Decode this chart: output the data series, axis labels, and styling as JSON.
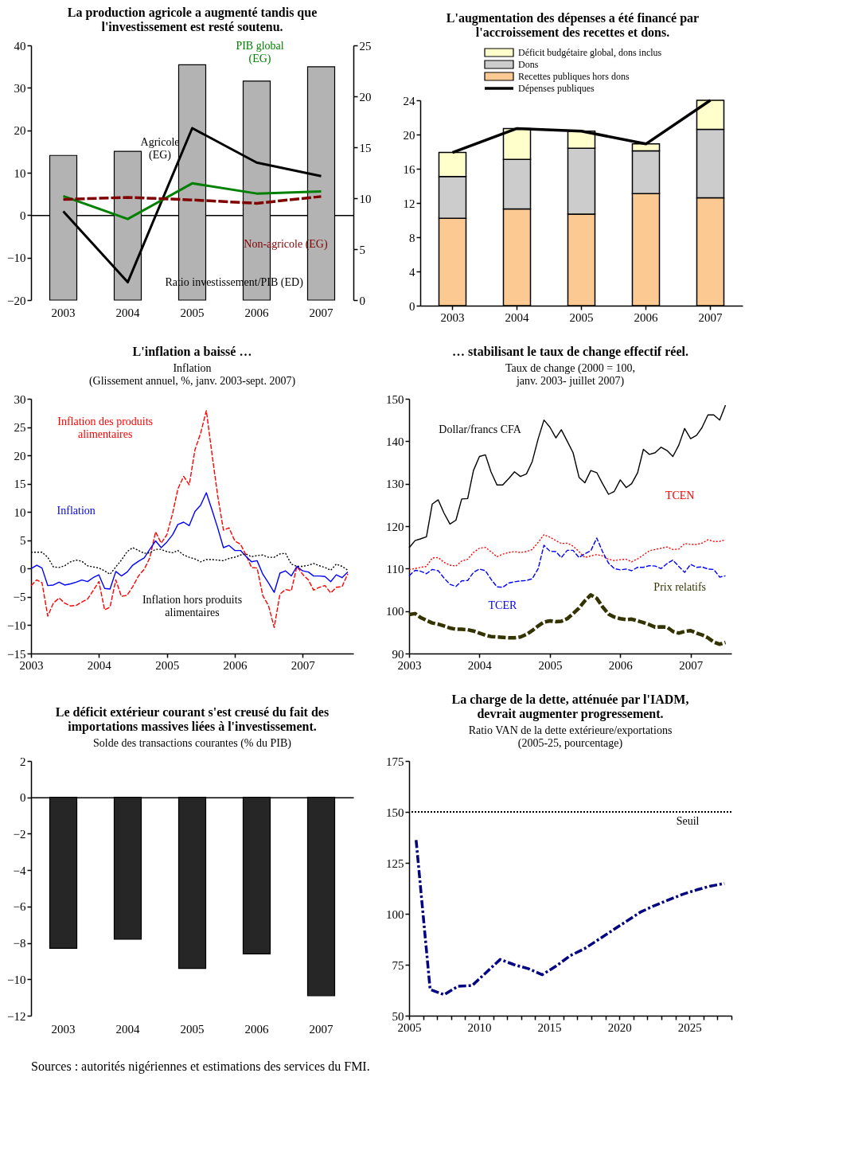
{
  "chart_data": [
    {
      "type": "bar",
      "title": "La production agricole a augmenté tandis que\nl'investissement est resté soutenu.",
      "categories": [
        "2003",
        "2004",
        "2005",
        "2006",
        "2007"
      ],
      "series": [
        {
          "name": "Ratio investissement/PIB (ED)",
          "type": "bar",
          "axis": "y2",
          "color": "#b3b3b3",
          "values": [
            14.2,
            14.6,
            23.1,
            21.5,
            22.9
          ]
        },
        {
          "name": "Agricole\n(EG)",
          "type": "line",
          "color": "#000000",
          "values": [
            0.9,
            -15.8,
            20.5,
            12.4,
            9.2
          ]
        },
        {
          "name": "PIB global\n(EG)",
          "type": "line",
          "color": "#008000",
          "values": [
            4.5,
            -0.9,
            7.5,
            5.1,
            5.6
          ]
        },
        {
          "name": "Non-agricole (EG)",
          "type": "line",
          "color": "#800000",
          "line_style": "dashed",
          "values": [
            3.7,
            4.2,
            3.6,
            2.8,
            4.4
          ]
        }
      ],
      "ylim": [
        -20,
        40
      ],
      "yticks": [
        -20,
        -10,
        0,
        10,
        20,
        30,
        40
      ],
      "y2lim": [
        0,
        25
      ],
      "y2ticks": [
        0,
        5,
        10,
        15,
        20,
        25
      ],
      "legend": false
    },
    {
      "type": "bar",
      "title": "L'augmentation des dépenses a été financé par\nl'accroissement des recettes et dons.",
      "categories": [
        "2003",
        "2004",
        "2005",
        "2006",
        "2007"
      ],
      "stacked": true,
      "series": [
        {
          "name": "Recettes publiques hors dons",
          "color": "#fcc993",
          "values": [
            10.2,
            11.3,
            10.7,
            13.1,
            12.6
          ]
        },
        {
          "name": "Dons",
          "color": "#cccccc",
          "values": [
            4.9,
            5.8,
            7.7,
            5.0,
            8.0
          ]
        },
        {
          "name": "Déficit budgétaire global, dons inclus",
          "color": "#ffffcc",
          "values": [
            2.8,
            3.6,
            2.0,
            0.8,
            3.4
          ]
        },
        {
          "name": "Dépenses publiques",
          "type": "line",
          "color": "#000000",
          "values": [
            17.9,
            20.7,
            20.4,
            18.9,
            24.0
          ]
        }
      ],
      "ylim": [
        0,
        24
      ],
      "yticks": [
        0,
        4,
        8,
        12,
        16,
        20,
        24
      ],
      "legend": "top"
    },
    {
      "type": "line",
      "title": "L'inflation a baissé …",
      "subtitle": "Inflation\n(Glissement annuel, %, janv. 2003-sept. 2007)",
      "x": [
        "2003-01",
        "2003-02",
        "2003-03",
        "2003-04",
        "2003-05",
        "2003-06",
        "2003-07",
        "2003-08",
        "2003-09",
        "2003-10",
        "2003-11",
        "2003-12",
        "2004-01",
        "2004-02",
        "2004-03",
        "2004-04",
        "2004-05",
        "2004-06",
        "2004-07",
        "2004-08",
        "2004-09",
        "2004-10",
        "2004-11",
        "2004-12",
        "2005-01",
        "2005-02",
        "2005-03",
        "2005-04",
        "2005-05",
        "2005-06",
        "2005-07",
        "2005-08",
        "2005-09",
        "2005-10",
        "2005-11",
        "2005-12",
        "2006-01",
        "2006-02",
        "2006-03",
        "2006-04",
        "2006-05",
        "2006-06",
        "2006-07",
        "2006-08",
        "2006-09",
        "2006-10",
        "2006-11",
        "2006-12",
        "2007-01",
        "2007-02",
        "2007-03",
        "2007-04",
        "2007-05",
        "2007-06",
        "2007-07",
        "2007-08",
        "2007-09"
      ],
      "series": [
        {
          "name": "Inflation des produits\nalimentaires",
          "color": "#ff0000",
          "line_style": "dashed",
          "values": [
            -3.0,
            -2.0,
            -2.5,
            -8.4,
            -6.1,
            -5.2,
            -6.1,
            -6.6,
            -6.5,
            -5.9,
            -5.4,
            -3.9,
            -2.3,
            -7.3,
            -6.8,
            -2.0,
            -4.9,
            -4.7,
            -3.2,
            -1.3,
            -0.1,
            1.9,
            6.5,
            4.5,
            6.0,
            9.8,
            14.1,
            16.3,
            14.8,
            21.0,
            23.9,
            27.9,
            20.1,
            12.9,
            6.8,
            7.2,
            4.9,
            4.3,
            2.5,
            0.2,
            0.1,
            -4.8,
            -6.5,
            -10.4,
            -4.5,
            -3.7,
            -3.9,
            0.4,
            -1.0,
            -2.0,
            -3.8,
            -3.3,
            -3.0,
            -4.3,
            -3.3,
            -3.2,
            -0.9
          ]
        },
        {
          "name": "Inflation",
          "color": "#0000ff",
          "values": [
            0.0,
            0.6,
            0.1,
            -3.0,
            -2.9,
            -2.4,
            -2.9,
            -2.7,
            -2.4,
            -2.0,
            -2.3,
            -1.6,
            -1.1,
            -3.5,
            -3.6,
            -0.5,
            -1.3,
            -0.6,
            0.6,
            1.3,
            1.9,
            3.4,
            4.9,
            3.7,
            4.7,
            6.0,
            7.8,
            8.2,
            7.6,
            10.1,
            11.2,
            13.4,
            10.3,
            7.2,
            3.7,
            4.1,
            3.2,
            3.2,
            2.2,
            1.2,
            1.4,
            -1.0,
            -2.5,
            -4.2,
            -0.8,
            -0.4,
            -1.3,
            0.4,
            -0.4,
            -0.6,
            -1.3,
            -1.3,
            -1.4,
            -2.3,
            -1.1,
            -1.6,
            -0.6
          ]
        },
        {
          "name": "Inflation hors produits\nalimentaires",
          "color": "#000000",
          "line_style": "dotted",
          "values": [
            2.9,
            2.9,
            2.9,
            2.0,
            0.3,
            0.2,
            0.5,
            1.2,
            1.5,
            1.3,
            0.5,
            0.3,
            0.1,
            -0.4,
            -1.0,
            0.3,
            1.5,
            3.0,
            3.7,
            3.2,
            2.7,
            2.8,
            3.4,
            3.4,
            3.0,
            2.8,
            3.2,
            2.4,
            2.0,
            1.7,
            1.2,
            1.6,
            1.6,
            1.5,
            1.4,
            1.8,
            2.0,
            2.4,
            2.6,
            2.1,
            2.3,
            2.4,
            2.0,
            2.0,
            2.6,
            2.7,
            0.8,
            0.4,
            0.4,
            0.6,
            0.9,
            0.5,
            0.2,
            -0.3,
            0.8,
            0.4,
            -0.3
          ]
        }
      ],
      "xlim": [
        "2003-01-01",
        "2007-10-01"
      ],
      "xticks": [
        "2003",
        "2004",
        "2005",
        "2006",
        "2007"
      ],
      "ylim": [
        -15,
        30
      ],
      "yticks": [
        -15,
        -10,
        -5,
        0,
        5,
        10,
        15,
        20,
        25,
        30
      ],
      "legend": false
    },
    {
      "type": "line",
      "title": "… stabilisant le taux de change effectif réel.",
      "subtitle": "Taux de change (2000 = 100,\njanv. 2003- juillet 2007)",
      "x": [
        "2003-01",
        "2003-02",
        "2003-03",
        "2003-04",
        "2003-05",
        "2003-06",
        "2003-07",
        "2003-08",
        "2003-09",
        "2003-10",
        "2003-11",
        "2003-12",
        "2004-01",
        "2004-02",
        "2004-03",
        "2004-04",
        "2004-05",
        "2004-06",
        "2004-07",
        "2004-08",
        "2004-09",
        "2004-10",
        "2004-11",
        "2004-12",
        "2005-01",
        "2005-02",
        "2005-03",
        "2005-04",
        "2005-05",
        "2005-06",
        "2005-07",
        "2005-08",
        "2005-09",
        "2005-10",
        "2005-11",
        "2005-12",
        "2006-01",
        "2006-02",
        "2006-03",
        "2006-04",
        "2006-05",
        "2006-06",
        "2006-07",
        "2006-08",
        "2006-09",
        "2006-10",
        "2006-11",
        "2006-12",
        "2007-01",
        "2007-02",
        "2007-03",
        "2007-04",
        "2007-05",
        "2007-06",
        "2007-07"
      ],
      "series": [
        {
          "name": "Dollar/francs CFA",
          "color": "#000000",
          "values": [
            114.9,
            116.6,
            117.0,
            117.5,
            125.2,
            126.2,
            123.1,
            120.5,
            121.4,
            126.4,
            126.5,
            133.1,
            136.4,
            136.8,
            132.8,
            129.7,
            129.7,
            131.2,
            132.8,
            131.7,
            132.3,
            135.2,
            140.6,
            145.0,
            143.3,
            140.8,
            142.7,
            140.0,
            137.3,
            131.5,
            130.2,
            133.1,
            132.6,
            130.0,
            127.5,
            128.2,
            130.9,
            129.1,
            130.0,
            132.6,
            138.1,
            136.9,
            137.3,
            138.6,
            137.8,
            136.4,
            139.1,
            143.0,
            140.6,
            141.4,
            143.2,
            146.2,
            146.2,
            145.0,
            148.5
          ]
        },
        {
          "name": "TCEN",
          "color": "#ff0000",
          "line_style": "dotted",
          "values": [
            109.8,
            110.0,
            110.3,
            110.5,
            112.5,
            112.6,
            111.5,
            110.8,
            110.6,
            111.8,
            112.2,
            113.8,
            114.8,
            115.0,
            114.0,
            112.8,
            113.4,
            113.8,
            114.0,
            113.8,
            114.0,
            114.5,
            116.2,
            118.0,
            117.4,
            116.6,
            115.9,
            116.0,
            115.3,
            114.0,
            112.6,
            113.0,
            113.3,
            113.0,
            112.2,
            111.9,
            112.1,
            112.2,
            111.6,
            112.3,
            113.2,
            114.2,
            114.5,
            114.8,
            115.1,
            114.5,
            114.6,
            115.9,
            115.7,
            115.7,
            116.0,
            116.8,
            116.4,
            116.4,
            116.8
          ]
        },
        {
          "name": "TCER",
          "color": "#0000ff",
          "line_style": "dashed",
          "values": [
            108.3,
            109.6,
            109.4,
            108.8,
            109.8,
            109.5,
            107.8,
            106.3,
            105.8,
            107.1,
            107.2,
            109.1,
            109.9,
            109.5,
            107.5,
            105.7,
            105.6,
            106.6,
            106.9,
            107.1,
            107.2,
            107.6,
            110.0,
            115.5,
            114.1,
            114.0,
            112.6,
            114.3,
            114.3,
            112.6,
            113.5,
            114.2,
            117.2,
            114.0,
            111.3,
            110.0,
            109.7,
            109.9,
            109.5,
            110.3,
            110.3,
            110.7,
            110.6,
            110.0,
            111.2,
            112.0,
            110.5,
            109.1,
            111.0,
            110.3,
            110.4,
            109.9,
            109.8,
            108.0,
            108.3
          ]
        },
        {
          "name": "Prix relatifs",
          "color": "#333300",
          "line_style": "dashed",
          "values": [
            99.2,
            99.4,
            98.5,
            97.8,
            97.2,
            96.9,
            96.5,
            96.0,
            95.7,
            95.7,
            95.6,
            95.3,
            94.8,
            94.3,
            94.0,
            93.9,
            93.8,
            93.7,
            93.7,
            93.9,
            94.5,
            95.4,
            96.5,
            97.4,
            97.7,
            97.5,
            97.6,
            98.2,
            99.4,
            100.7,
            102.4,
            103.8,
            103.0,
            101.0,
            99.3,
            98.6,
            98.2,
            98.0,
            98.1,
            97.7,
            97.3,
            96.8,
            96.2,
            96.3,
            96.2,
            95.2,
            94.8,
            95.2,
            95.4,
            94.8,
            94.4,
            93.7,
            92.7,
            92.2,
            92.6
          ]
        }
      ],
      "xlim": [
        "2003-01-01",
        "2007-08-01"
      ],
      "xticks": [
        "2003",
        "2004",
        "2005",
        "2006",
        "2007"
      ],
      "ylim": [
        90,
        150
      ],
      "yticks": [
        90,
        100,
        110,
        120,
        130,
        140,
        150
      ],
      "legend": false
    },
    {
      "type": "bar",
      "title": "Le déficit extérieur courant s'est creusé du fait des\nimportations massives liées à l'investissement.",
      "subtitle": "Solde des transactions courantes (% du PIB)",
      "categories": [
        "2003",
        "2004",
        "2005",
        "2006",
        "2007"
      ],
      "color": "#262626",
      "values": [
        -8.3,
        -7.8,
        -9.4,
        -8.6,
        -10.9
      ],
      "ylim": [
        -12,
        2
      ],
      "yticks": [
        -12,
        -10,
        -8,
        -6,
        -4,
        -2,
        0,
        2
      ]
    },
    {
      "type": "line",
      "title": "La charge de la dette, atténuée par l'IADM,\ndevrait augmenter progressement.",
      "subtitle": "Ratio VAN de la dette extérieure/exportations\n(2005-25, pourcentage)",
      "x": [
        2005.5,
        2006.5,
        2007.5,
        2008.5,
        2009.5,
        2010.5,
        2011.5,
        2012.5,
        2013.5,
        2014.5,
        2015.5,
        2016.5,
        2017.5,
        2018.5,
        2019.5,
        2020.5,
        2021.5,
        2022.5,
        2023.5,
        2024.5,
        2025.5,
        2026.5,
        2027.5
      ],
      "series": [
        {
          "color": "#000080",
          "line_style": "dashed",
          "values": [
            136.2,
            62.9,
            60.3,
            64.5,
            64.8,
            71.2,
            77.6,
            75.0,
            73.1,
            70.1,
            74.4,
            79.5,
            82.8,
            87.3,
            91.8,
            96.3,
            100.8,
            104.0,
            106.8,
            109.5,
            111.7,
            113.6,
            114.9
          ]
        }
      ],
      "xlim": [
        2005,
        2028
      ],
      "xticks": [
        2005,
        {
          "value": 2006,
          "label": null
        },
        {
          "value": 2007,
          "label": null
        },
        {
          "value": 2008,
          "label": null
        },
        {
          "value": 2009,
          "label": null
        },
        2010,
        {
          "value": 2011,
          "label": null
        },
        {
          "value": 2012,
          "label": null
        },
        {
          "value": 2013,
          "label": null
        },
        {
          "value": 2014,
          "label": null
        },
        2015,
        {
          "value": 2016,
          "label": null
        },
        {
          "value": 2017,
          "label": null
        },
        {
          "value": 2018,
          "label": null
        },
        {
          "value": 2019,
          "label": null
        },
        2020,
        {
          "value": 2021,
          "label": null
        },
        {
          "value": 2022,
          "label": null
        },
        {
          "value": 2023,
          "label": null
        },
        {
          "value": 2024,
          "label": null
        },
        2025,
        {
          "value": 2026,
          "label": null
        },
        {
          "value": 2027,
          "label": null
        },
        {
          "value": 2028,
          "label": null
        }
      ],
      "ylim": [
        50,
        175
      ],
      "yticks": [
        50,
        75,
        100,
        125,
        150,
        175
      ],
      "ref_lines": [
        {
          "axis": "y",
          "value": 150,
          "label": "Seuil",
          "color": "#000000",
          "line_style": "dotted"
        }
      ],
      "annotations": [
        "Sources : autorités nigériennes et estimations des services du FMI."
      ]
    }
  ]
}
